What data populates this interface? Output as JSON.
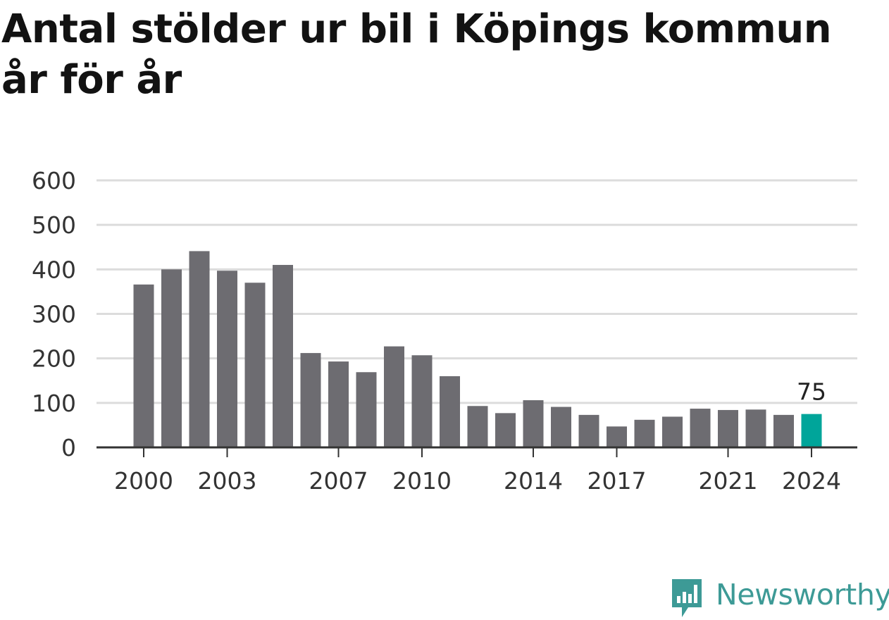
{
  "title": "Antal stölder ur bil i Köpings kommun år för år",
  "brand": {
    "name": "Newsworthy",
    "icon": "newsworthy-logo-icon",
    "color": "#3d9a96"
  },
  "colors": {
    "bar": "#6d6c71",
    "highlight": "#00a59a",
    "grid": "#dcdcdc",
    "axis": "#333333",
    "text": "#333333"
  },
  "chart_data": {
    "type": "bar",
    "title": "Antal stölder ur bil i Köpings kommun år för år",
    "xlabel": "",
    "ylabel": "",
    "categories": [
      "2000",
      "2001",
      "2002",
      "2003",
      "2004",
      "2005",
      "2006",
      "2007",
      "2008",
      "2009",
      "2010",
      "2011",
      "2012",
      "2013",
      "2014",
      "2015",
      "2016",
      "2017",
      "2018",
      "2019",
      "2020",
      "2021",
      "2022",
      "2023",
      "2024"
    ],
    "x_tick_labels": [
      "2000",
      "2003",
      "2007",
      "2010",
      "2014",
      "2017",
      "2021",
      "2024"
    ],
    "values": [
      366,
      400,
      441,
      397,
      370,
      410,
      212,
      193,
      169,
      227,
      207,
      160,
      93,
      77,
      106,
      91,
      73,
      47,
      62,
      69,
      87,
      84,
      85,
      73,
      75
    ],
    "ylim": [
      0,
      600
    ],
    "y_ticks": [
      0,
      100,
      200,
      300,
      400,
      500,
      600
    ],
    "grid": true,
    "highlight": {
      "category": "2024",
      "label": "75"
    }
  }
}
